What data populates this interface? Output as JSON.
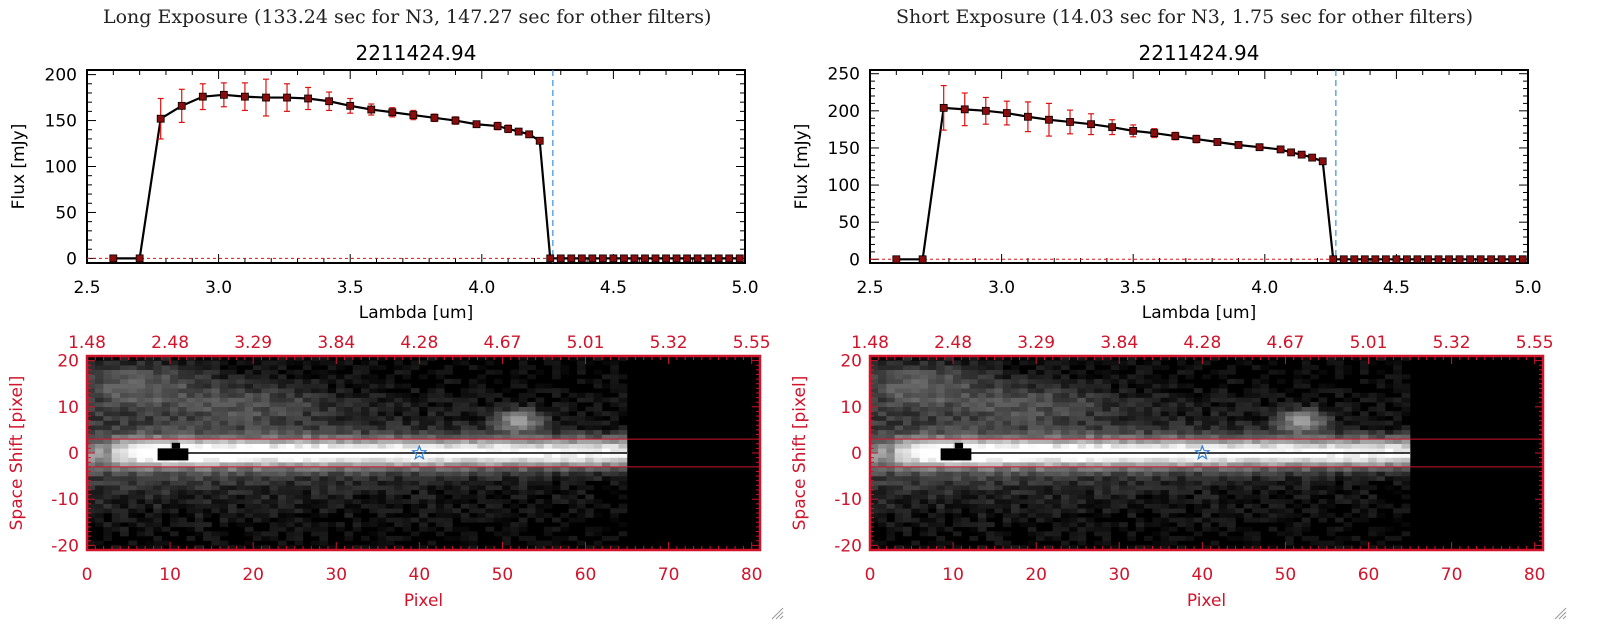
{
  "panels": [
    {
      "title": "Long Exposure (133.24 sec for N3, 147.27 sec for other filters)",
      "spectrum": {
        "type": "line",
        "title": "2211424.94",
        "xlabel": "Lambda [um]",
        "ylabel": "Flux [mJy]",
        "xlim": [
          2.5,
          5.0
        ],
        "ylim": [
          -5,
          205
        ],
        "xticks": [
          "2.5",
          "3.0",
          "3.5",
          "4.0",
          "4.5",
          "5.0"
        ],
        "yticks": [
          "0",
          "50",
          "100",
          "150",
          "200"
        ],
        "reference_line_x": 4.27,
        "x": [
          2.6,
          2.7,
          2.78,
          2.86,
          2.94,
          3.02,
          3.1,
          3.18,
          3.26,
          3.34,
          3.42,
          3.5,
          3.58,
          3.66,
          3.74,
          3.82,
          3.9,
          3.98,
          4.06,
          4.1,
          4.14,
          4.18,
          4.22,
          4.26,
          4.3,
          4.34,
          4.38,
          4.42,
          4.46,
          4.5,
          4.54,
          4.58,
          4.62,
          4.66,
          4.7,
          4.74,
          4.78,
          4.82,
          4.86,
          4.9,
          4.94,
          4.98
        ],
        "y": [
          0,
          0,
          152,
          166,
          176,
          178,
          176,
          175,
          175,
          174,
          171,
          166,
          162,
          159,
          156,
          153,
          150,
          146,
          144,
          141,
          138,
          135,
          128,
          0,
          0,
          0,
          0,
          0,
          0,
          0,
          0,
          0,
          0,
          0,
          0,
          0,
          0,
          0,
          0,
          0,
          0,
          0
        ],
        "error": [
          0,
          0,
          22,
          18,
          14,
          13,
          15,
          20,
          15,
          12,
          10,
          8,
          6,
          5,
          5,
          4,
          4,
          3,
          4,
          4,
          3,
          3,
          3,
          0,
          0,
          0,
          0,
          0,
          0,
          0,
          0,
          0,
          0,
          0,
          0,
          0,
          0,
          0,
          0,
          0,
          0,
          0
        ]
      },
      "image": {
        "xlabel": "Pixel",
        "ylabel": "Space Shift [pixel]",
        "xticks": [
          "0",
          "10",
          "20",
          "30",
          "40",
          "50",
          "60",
          "70",
          "80"
        ],
        "yticks": [
          "20",
          "10",
          "0",
          "-10",
          "-20"
        ],
        "top_ticks": [
          "1.48",
          "2.48",
          "3.29",
          "3.84",
          "4.28",
          "4.67",
          "5.01",
          "5.32",
          "5.55"
        ],
        "xlim": [
          0,
          81
        ],
        "ylim": [
          -21,
          21
        ],
        "aperture": [
          -3,
          3
        ],
        "source_position": [
          40,
          0
        ]
      }
    },
    {
      "title": "Short Exposure (14.03 sec for N3, 1.75 sec for other filters)",
      "spectrum": {
        "type": "line",
        "title": "2211424.94",
        "xlabel": "Lambda [um]",
        "ylabel": "Flux [mJy]",
        "xlim": [
          2.5,
          5.0
        ],
        "ylim": [
          -5,
          255
        ],
        "xticks": [
          "2.5",
          "3.0",
          "3.5",
          "4.0",
          "4.5",
          "5.0"
        ],
        "yticks": [
          "0",
          "50",
          "100",
          "150",
          "200",
          "250"
        ],
        "reference_line_x": 4.27,
        "x": [
          2.6,
          2.7,
          2.78,
          2.86,
          2.94,
          3.02,
          3.1,
          3.18,
          3.26,
          3.34,
          3.42,
          3.5,
          3.58,
          3.66,
          3.74,
          3.82,
          3.9,
          3.98,
          4.06,
          4.1,
          4.14,
          4.18,
          4.22,
          4.26,
          4.3,
          4.34,
          4.38,
          4.42,
          4.46,
          4.5,
          4.54,
          4.58,
          4.62,
          4.66,
          4.7,
          4.74,
          4.78,
          4.82,
          4.86,
          4.9,
          4.94,
          4.98
        ],
        "y": [
          0,
          0,
          204,
          202,
          200,
          197,
          192,
          188,
          185,
          182,
          178,
          173,
          170,
          166,
          162,
          158,
          154,
          151,
          148,
          144,
          141,
          137,
          132,
          0,
          0,
          0,
          0,
          0,
          0,
          0,
          0,
          0,
          0,
          0,
          0,
          0,
          0,
          0,
          0,
          0,
          0,
          0
        ],
        "error": [
          0,
          0,
          30,
          22,
          18,
          16,
          20,
          22,
          16,
          14,
          10,
          8,
          6,
          5,
          5,
          4,
          4,
          3,
          4,
          4,
          3,
          3,
          3,
          0,
          0,
          0,
          0,
          0,
          0,
          0,
          0,
          0,
          0,
          0,
          0,
          0,
          0,
          0,
          0,
          0,
          0,
          0
        ]
      },
      "image": {
        "xlabel": "Pixel",
        "ylabel": "Space Shift [pixel]",
        "xticks": [
          "0",
          "10",
          "20",
          "30",
          "40",
          "50",
          "60",
          "70",
          "80"
        ],
        "yticks": [
          "20",
          "10",
          "0",
          "-10",
          "-20"
        ],
        "top_ticks": [
          "1.48",
          "2.48",
          "3.29",
          "3.84",
          "4.28",
          "4.67",
          "5.01",
          "5.32",
          "5.55"
        ],
        "xlim": [
          0,
          81
        ],
        "ylim": [
          -21,
          21
        ],
        "aperture": [
          -3,
          3
        ],
        "source_position": [
          40,
          0
        ]
      }
    }
  ],
  "colors": {
    "axis": "#000000",
    "image_axis": "#d0142c",
    "errorbar": "#e01010",
    "marker": "#8a0c0c",
    "reference": "#3a8fe0",
    "zero_line": "#e01010",
    "star": "#2f7fd8"
  },
  "chart_data": [
    {
      "type": "line",
      "title": "2211424.94",
      "xlabel": "Lambda [um]",
      "ylabel": "Flux [mJy]",
      "xlim": [
        2.5,
        5.0
      ],
      "ylim": [
        -5,
        205
      ],
      "series": [
        {
          "name": "",
          "x": [
            2.6,
            2.7,
            2.78,
            2.86,
            2.94,
            3.02,
            3.1,
            3.18,
            3.26,
            3.34,
            3.42,
            3.5,
            3.58,
            3.66,
            3.74,
            3.82,
            3.9,
            3.98,
            4.06
          ],
          "y": [
            0,
            0,
            152,
            166,
            176,
            178,
            176,
            175,
            175,
            174,
            171,
            166,
            162,
            159,
            156,
            153,
            150,
            146,
            144
          ]
        }
      ]
    },
    {
      "type": "line",
      "title": "2211424.94",
      "xlabel": "Lambda [um]",
      "ylabel": "Flux [mJy]",
      "xlim": [
        2.5,
        5.0
      ],
      "ylim": [
        -5,
        255
      ],
      "series": [
        {
          "name": "",
          "x": [
            2.6,
            2.7,
            2.78,
            2.86,
            2.94,
            3.02,
            3.1,
            3.18,
            3.26,
            3.34,
            3.42,
            3.5,
            3.58,
            3.66,
            3.74,
            3.82,
            3.9,
            3.98,
            4.06
          ],
          "y": [
            0,
            0,
            204,
            202,
            200,
            197,
            192,
            188,
            185,
            182,
            178,
            173,
            170,
            166,
            162,
            158,
            154,
            151,
            148
          ]
        }
      ]
    },
    {
      "type": "heatmap",
      "xlabel": "Pixel",
      "ylabel": "Space Shift [pixel]",
      "xlim": [
        0,
        81
      ],
      "ylim": [
        -21,
        21
      ]
    },
    {
      "type": "heatmap",
      "xlabel": "Pixel",
      "ylabel": "Space Shift [pixel]",
      "xlim": [
        0,
        81
      ],
      "ylim": [
        -21,
        21
      ]
    }
  ]
}
